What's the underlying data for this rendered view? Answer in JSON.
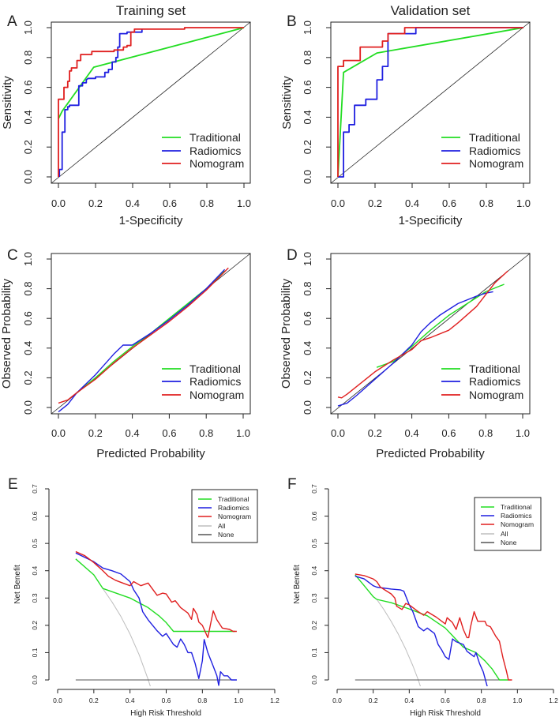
{
  "colors": {
    "Traditional": "#22dd22",
    "Radiomics": "#1f1fe0",
    "Nomogram": "#e01f1f",
    "All": "#bdbdbd",
    "None": "#555555",
    "reference": "#222222"
  },
  "chart_data": [
    {
      "panel": "A",
      "type": "line",
      "title": "Training set",
      "xlabel": "1-Specificity",
      "ylabel": "Sensitivity",
      "xlim": [
        0,
        1
      ],
      "ylim": [
        0,
        1
      ],
      "xticks": [
        "0.0",
        "0.2",
        "0.4",
        "0.6",
        "0.8",
        "1.0"
      ],
      "yticks": [
        "0.0",
        "0.2",
        "0.4",
        "0.6",
        "0.8",
        "1.0"
      ],
      "legend": [
        "Traditional",
        "Radiomics",
        "Nomogram"
      ],
      "legend_position": "bottom-right",
      "reference_diagonal": true,
      "series": [
        {
          "name": "Traditional",
          "x": [
            0,
            0.02,
            0.19,
            1
          ],
          "y": [
            0.39,
            0.44,
            0.735,
            1
          ]
        },
        {
          "name": "Radiomics",
          "x": [
            0.005,
            0.005,
            0.02,
            0.02,
            0.035,
            0.035,
            0.05,
            0.05,
            0.06,
            0.06,
            0.11,
            0.11,
            0.13,
            0.13,
            0.15,
            0.15,
            0.16,
            0.2,
            0.2,
            0.25,
            0.25,
            0.27,
            0.27,
            0.29,
            0.29,
            0.31,
            0.31,
            0.32,
            0.32,
            0.33,
            0.33,
            0.37,
            0.37,
            0.45,
            0.45
          ],
          "y": [
            0,
            0.05,
            0.05,
            0.3,
            0.3,
            0.45,
            0.45,
            0.47,
            0.47,
            0.48,
            0.48,
            0.61,
            0.61,
            0.63,
            0.63,
            0.65,
            0.66,
            0.66,
            0.67,
            0.67,
            0.7,
            0.7,
            0.72,
            0.72,
            0.77,
            0.77,
            0.8,
            0.8,
            0.87,
            0.87,
            0.96,
            0.96,
            0.97,
            0.97,
            0.99
          ]
        },
        {
          "name": "Nomogram",
          "x": [
            0,
            0,
            0.03,
            0.03,
            0.05,
            0.05,
            0.06,
            0.06,
            0.07,
            0.07,
            0.1,
            0.1,
            0.12,
            0.12,
            0.18,
            0.18,
            0.3,
            0.3,
            0.35,
            0.35,
            0.37,
            0.37,
            0.39,
            0.39,
            0.41,
            0.41,
            0.68,
            0.68,
            1
          ],
          "y": [
            0,
            0.52,
            0.52,
            0.6,
            0.6,
            0.64,
            0.64,
            0.71,
            0.71,
            0.73,
            0.73,
            0.78,
            0.78,
            0.82,
            0.82,
            0.84,
            0.84,
            0.85,
            0.85,
            0.87,
            0.87,
            0.88,
            0.88,
            0.97,
            0.97,
            0.99,
            0.99,
            1,
            1
          ]
        }
      ]
    },
    {
      "panel": "B",
      "type": "line",
      "title": "Validation set",
      "xlabel": "1-Specificity",
      "ylabel": "Sensitivity",
      "xlim": [
        0,
        1
      ],
      "ylim": [
        0,
        1
      ],
      "xticks": [
        "0.0",
        "0.2",
        "0.4",
        "0.6",
        "0.8",
        "1.0"
      ],
      "yticks": [
        "0.0",
        "0.2",
        "0.4",
        "0.6",
        "0.8",
        "1.0"
      ],
      "legend": [
        "Traditional",
        "Radiomics",
        "Nomogram"
      ],
      "legend_position": "bottom-right",
      "reference_diagonal": true,
      "series": [
        {
          "name": "Traditional",
          "x": [
            0,
            0.03,
            0.21,
            1
          ],
          "y": [
            0,
            0.7,
            0.83,
            1
          ]
        },
        {
          "name": "Radiomics",
          "x": [
            0,
            0.03,
            0.03,
            0.06,
            0.06,
            0.09,
            0.09,
            0.15,
            0.15,
            0.21,
            0.21,
            0.24,
            0.24,
            0.27,
            0.27,
            0.42,
            0.42,
            1
          ],
          "y": [
            0,
            0,
            0.3,
            0.3,
            0.35,
            0.35,
            0.48,
            0.48,
            0.52,
            0.52,
            0.65,
            0.65,
            0.74,
            0.74,
            0.96,
            0.96,
            1,
            1
          ]
        },
        {
          "name": "Nomogram",
          "x": [
            0,
            0,
            0.03,
            0.03,
            0.12,
            0.12,
            0.24,
            0.24,
            0.27,
            0.27,
            0.36,
            0.36,
            1
          ],
          "y": [
            0,
            0.74,
            0.74,
            0.78,
            0.78,
            0.87,
            0.87,
            0.91,
            0.91,
            0.96,
            0.96,
            1,
            1
          ]
        }
      ]
    },
    {
      "panel": "C",
      "type": "line",
      "title": "",
      "xlabel": "Predicted Probability",
      "ylabel": "Observed Probability",
      "xlim": [
        0,
        1
      ],
      "ylim": [
        0,
        1
      ],
      "xticks": [
        "0.0",
        "0.2",
        "0.4",
        "0.6",
        "0.8",
        "1.0"
      ],
      "yticks": [
        "0.0",
        "0.2",
        "0.4",
        "0.6",
        "0.8",
        "1.0"
      ],
      "legend": [
        "Traditional",
        "Radiomics",
        "Nomogram"
      ],
      "legend_position": "bottom-right",
      "reference_diagonal": true,
      "series": [
        {
          "name": "Traditional",
          "x": [
            0.1,
            0.2,
            0.3,
            0.4,
            0.5,
            0.6,
            0.7,
            0.8,
            0.9
          ],
          "y": [
            0.1,
            0.2,
            0.31,
            0.41,
            0.5,
            0.6,
            0.7,
            0.8,
            0.92
          ]
        },
        {
          "name": "Radiomics",
          "x": [
            0,
            0.05,
            0.1,
            0.2,
            0.3,
            0.35,
            0.4,
            0.5,
            0.6,
            0.7,
            0.8,
            0.9
          ],
          "y": [
            -0.03,
            0.02,
            0.1,
            0.22,
            0.36,
            0.42,
            0.42,
            0.5,
            0.59,
            0.69,
            0.8,
            0.93
          ]
        },
        {
          "name": "Nomogram",
          "x": [
            0,
            0.05,
            0.1,
            0.2,
            0.3,
            0.4,
            0.5,
            0.6,
            0.7,
            0.8,
            0.92
          ],
          "y": [
            0.03,
            0.05,
            0.1,
            0.19,
            0.3,
            0.4,
            0.49,
            0.58,
            0.68,
            0.79,
            0.94
          ]
        }
      ]
    },
    {
      "panel": "D",
      "type": "line",
      "title": "",
      "xlabel": "Predicted Probability",
      "ylabel": "Observed Probability",
      "xlim": [
        0,
        1
      ],
      "ylim": [
        0,
        1
      ],
      "xticks": [
        "0.0",
        "0.2",
        "0.4",
        "0.6",
        "0.8",
        "1.0"
      ],
      "yticks": [
        "0.0",
        "0.2",
        "0.4",
        "0.6",
        "0.8",
        "1.0"
      ],
      "legend": [
        "Traditional",
        "Radiomics",
        "Nomogram"
      ],
      "legend_position": "bottom-right",
      "reference_diagonal": true,
      "series": [
        {
          "name": "Traditional",
          "x": [
            0.21,
            0.3,
            0.4,
            0.5,
            0.6,
            0.7,
            0.8,
            0.9
          ],
          "y": [
            0.27,
            0.31,
            0.41,
            0.52,
            0.62,
            0.7,
            0.78,
            0.83
          ]
        },
        {
          "name": "Radiomics",
          "x": [
            0,
            0.05,
            0.1,
            0.2,
            0.3,
            0.4,
            0.45,
            0.5,
            0.55,
            0.6,
            0.65,
            0.75,
            0.8,
            0.84
          ],
          "y": [
            0.01,
            0.03,
            0.08,
            0.19,
            0.3,
            0.42,
            0.51,
            0.57,
            0.62,
            0.66,
            0.7,
            0.75,
            0.77,
            0.78
          ]
        },
        {
          "name": "Nomogram",
          "x": [
            0,
            0.02,
            0.05,
            0.1,
            0.2,
            0.3,
            0.4,
            0.45,
            0.5,
            0.6,
            0.65,
            0.75,
            0.8,
            0.85,
            0.92
          ],
          "y": [
            0.07,
            0.065,
            0.09,
            0.14,
            0.24,
            0.32,
            0.39,
            0.45,
            0.47,
            0.52,
            0.57,
            0.68,
            0.76,
            0.84,
            0.92
          ]
        }
      ]
    },
    {
      "panel": "E",
      "type": "line",
      "title": "",
      "xlabel": "High Risk Threshold",
      "ylabel": "Net Benefit",
      "xlim": [
        0,
        1.2
      ],
      "ylim": [
        0,
        0.7
      ],
      "xticks": [
        "0.0",
        "0.2",
        "0.4",
        "0.6",
        "0.8",
        "1.0",
        "1.2"
      ],
      "yticks": [
        "0.0",
        "0.1",
        "0.2",
        "0.3",
        "0.4",
        "0.5",
        "0.6",
        "0.7"
      ],
      "legend": [
        "Traditional",
        "Radiomics",
        "Nomogram",
        "All",
        "None"
      ],
      "legend_position": "top-right",
      "reference_diagonal": false,
      "series": [
        {
          "name": "All",
          "x": [
            0.25,
            0.3,
            0.35,
            0.4,
            0.45,
            0.5,
            0.52
          ],
          "y": [
            0.334,
            0.286,
            0.232,
            0.168,
            0.093,
            0.002,
            -0.04
          ]
        },
        {
          "name": "None",
          "x": [
            0.1,
            0.99
          ],
          "y": [
            0,
            0
          ]
        },
        {
          "name": "Traditional",
          "x": [
            0.1,
            0.2,
            0.25,
            0.4,
            0.5,
            0.56,
            0.6,
            0.64,
            0.98
          ],
          "y": [
            0.443,
            0.385,
            0.335,
            0.3,
            0.265,
            0.235,
            0.21,
            0.178,
            0.178
          ]
        },
        {
          "name": "Radiomics",
          "x": [
            0.1,
            0.2,
            0.25,
            0.3,
            0.35,
            0.4,
            0.42,
            0.45,
            0.47,
            0.5,
            0.55,
            0.58,
            0.6,
            0.62,
            0.64,
            0.66,
            0.68,
            0.7,
            0.72,
            0.74,
            0.76,
            0.78,
            0.8,
            0.81,
            0.83,
            0.86,
            0.88,
            0.89,
            0.9,
            0.92,
            0.94,
            0.96,
            0.99
          ],
          "y": [
            0.465,
            0.433,
            0.41,
            0.4,
            0.388,
            0.36,
            0.33,
            0.3,
            0.25,
            0.22,
            0.18,
            0.16,
            0.17,
            0.15,
            0.13,
            0.12,
            0.15,
            0.13,
            0.1,
            0.1,
            0.06,
            0.005,
            0.07,
            0.148,
            0.1,
            0.05,
            0.015,
            -0.02,
            0.03,
            0.015,
            0.015,
            0,
            0
          ]
        },
        {
          "name": "Nomogram",
          "x": [
            0.1,
            0.15,
            0.2,
            0.25,
            0.28,
            0.32,
            0.36,
            0.4,
            0.42,
            0.46,
            0.5,
            0.55,
            0.58,
            0.6,
            0.63,
            0.65,
            0.68,
            0.72,
            0.74,
            0.75,
            0.77,
            0.78,
            0.8,
            0.83,
            0.86,
            0.88,
            0.91,
            0.95,
            0.97,
            0.99
          ],
          "y": [
            0.47,
            0.455,
            0.43,
            0.4,
            0.38,
            0.365,
            0.355,
            0.345,
            0.36,
            0.345,
            0.355,
            0.31,
            0.318,
            0.315,
            0.285,
            0.29,
            0.265,
            0.245,
            0.222,
            0.262,
            0.24,
            0.212,
            0.2,
            0.155,
            0.253,
            0.22,
            0.19,
            0.185,
            0.178,
            0.178
          ]
        }
      ]
    },
    {
      "panel": "F",
      "type": "line",
      "title": "",
      "xlabel": "High Risk Threshold",
      "ylabel": "Net Benefit",
      "xlim": [
        0,
        1.2
      ],
      "ylim": [
        0,
        0.7
      ],
      "xticks": [
        "0.0",
        "0.2",
        "0.4",
        "0.6",
        "0.8",
        "1.0",
        "1.2"
      ],
      "yticks": [
        "0.0",
        "0.1",
        "0.2",
        "0.3",
        "0.4",
        "0.5",
        "0.6",
        "0.7"
      ],
      "legend": [
        "Traditional",
        "Radiomics",
        "Nomogram",
        "All",
        "None"
      ],
      "legend_position": "top-right",
      "reference_diagonal": false,
      "series": [
        {
          "name": "All",
          "x": [
            0.22,
            0.26,
            0.3,
            0.34,
            0.38,
            0.42,
            0.45,
            0.465
          ],
          "y": [
            0.295,
            0.257,
            0.214,
            0.167,
            0.113,
            0.052,
            0.0,
            -0.03
          ]
        },
        {
          "name": "None",
          "x": [
            0.1,
            0.97
          ],
          "y": [
            0,
            0
          ]
        },
        {
          "name": "Traditional",
          "x": [
            0.1,
            0.15,
            0.2,
            0.22,
            0.3,
            0.4,
            0.5,
            0.6,
            0.65,
            0.7,
            0.77,
            0.82,
            0.86,
            0.9,
            0.95
          ],
          "y": [
            0.385,
            0.345,
            0.305,
            0.295,
            0.283,
            0.26,
            0.235,
            0.19,
            0.155,
            0.12,
            0.1,
            0.07,
            0.04,
            0,
            0
          ]
        },
        {
          "name": "Radiomics",
          "x": [
            0.1,
            0.15,
            0.2,
            0.22,
            0.3,
            0.35,
            0.37,
            0.4,
            0.42,
            0.45,
            0.48,
            0.5,
            0.54,
            0.56,
            0.58,
            0.6,
            0.62,
            0.64,
            0.66,
            0.7,
            0.72,
            0.76,
            0.77,
            0.79,
            0.81,
            0.835
          ],
          "y": [
            0.38,
            0.37,
            0.345,
            0.34,
            0.333,
            0.33,
            0.325,
            0.275,
            0.25,
            0.195,
            0.18,
            0.19,
            0.17,
            0.13,
            0.11,
            0.085,
            0.075,
            0.15,
            0.14,
            0.13,
            0.105,
            0.085,
            0.1,
            0.06,
            0.03,
            -0.03
          ]
        },
        {
          "name": "Nomogram",
          "x": [
            0.1,
            0.15,
            0.2,
            0.22,
            0.24,
            0.3,
            0.32,
            0.33,
            0.36,
            0.38,
            0.4,
            0.45,
            0.48,
            0.5,
            0.55,
            0.6,
            0.61,
            0.64,
            0.66,
            0.68,
            0.7,
            0.72,
            0.73,
            0.74,
            0.76,
            0.78,
            0.82,
            0.83,
            0.85,
            0.88,
            0.9,
            0.92,
            0.94,
            0.95,
            0.97
          ],
          "y": [
            0.388,
            0.382,
            0.37,
            0.36,
            0.34,
            0.315,
            0.3,
            0.27,
            0.258,
            0.28,
            0.275,
            0.25,
            0.237,
            0.25,
            0.23,
            0.205,
            0.228,
            0.21,
            0.185,
            0.228,
            0.185,
            0.155,
            0.155,
            0.195,
            0.25,
            0.215,
            0.215,
            0.2,
            0.195,
            0.16,
            0.142,
            0.08,
            0.03,
            0,
            0
          ]
        }
      ]
    }
  ]
}
